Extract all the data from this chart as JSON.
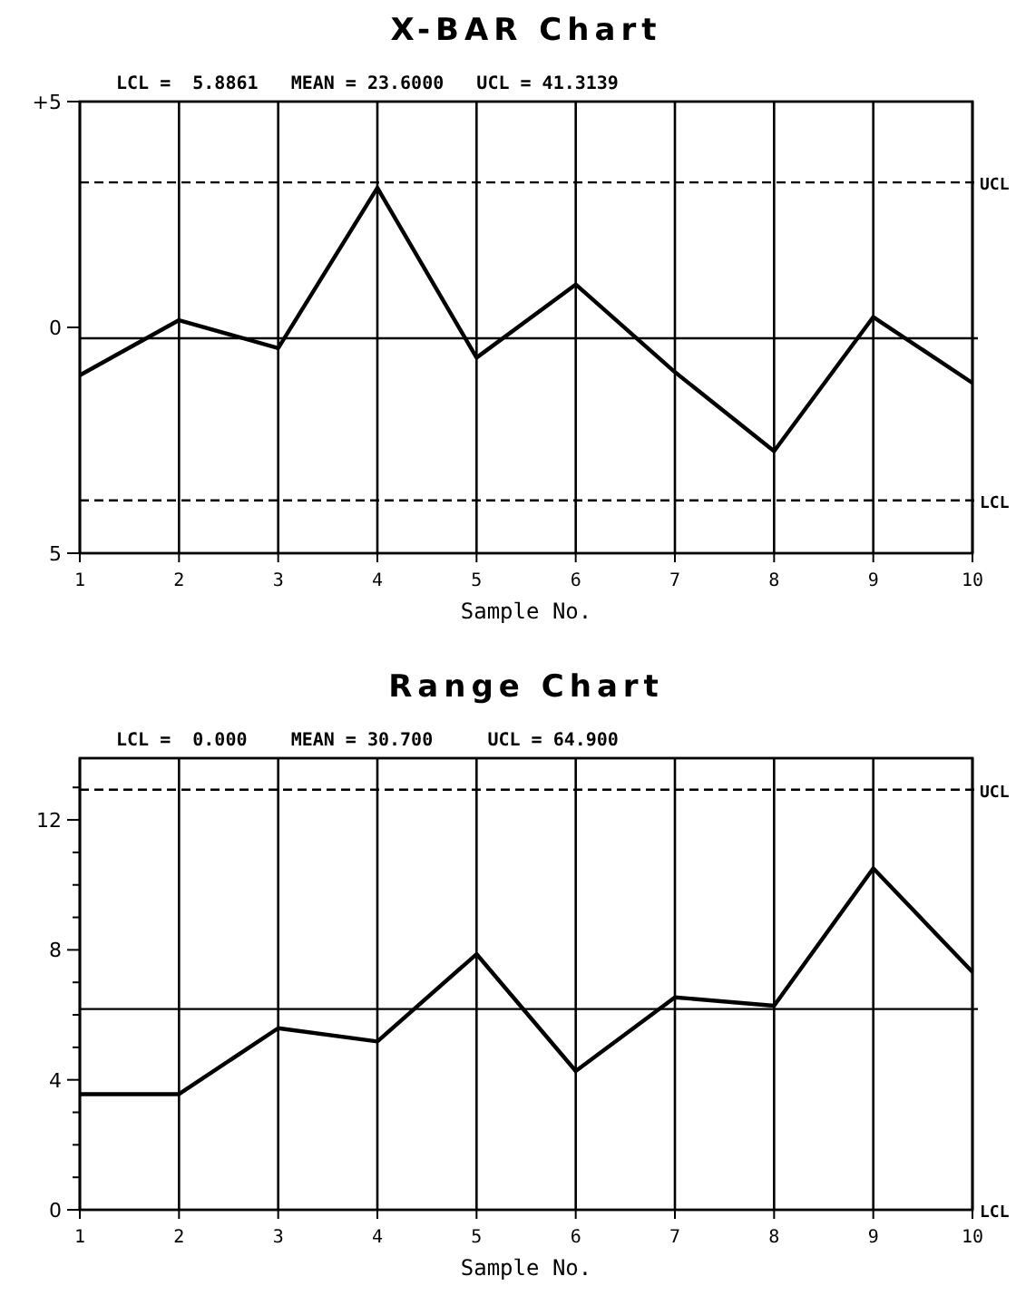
{
  "chart_data": [
    {
      "type": "line",
      "title": "X-BAR Chart",
      "subtitle": "LCL =  5.8861   MEAN = 23.6000   UCL = 41.3139",
      "xlabel": "Sample No.",
      "x": [
        1,
        2,
        3,
        4,
        5,
        6,
        7,
        8,
        9,
        10
      ],
      "series": [
        {
          "color": "#000000",
          "values": [
            -1.06,
            0.16,
            -0.46,
            3.09,
            -0.67,
            0.95,
            -0.99,
            -2.74,
            0.23,
            -1.23
          ]
        }
      ],
      "xlim": [
        1,
        10
      ],
      "xticks": [
        1,
        2,
        3,
        4,
        5,
        6,
        7,
        8,
        9,
        10
      ],
      "ylim": [
        -5,
        5
      ],
      "yticks": [
        {
          "value": -5,
          "label": "5"
        },
        0,
        {
          "value": 5,
          "label": "+5"
        }
      ],
      "ref_lines": [
        {
          "axis": "y",
          "value": 3.21,
          "label": "UCL",
          "line_style": "dashed"
        },
        {
          "axis": "y",
          "value": -0.24,
          "label": null,
          "line_style": "solid"
        },
        {
          "axis": "y",
          "value": -3.83,
          "label": "LCL",
          "line_style": "dashed"
        }
      ],
      "grid": "x",
      "marker": "none",
      "line_style": "solid"
    },
    {
      "type": "line",
      "title": "Range Chart",
      "subtitle": "LCL =  0.000    MEAN = 30.700     UCL = 64.900",
      "xlabel": "Sample No.",
      "x": [
        1,
        2,
        3,
        4,
        5,
        6,
        7,
        8,
        9,
        10
      ],
      "series": [
        {
          "color": "#000000",
          "values": [
            3.56,
            3.56,
            5.59,
            5.18,
            7.87,
            4.27,
            6.54,
            6.28,
            10.51,
            7.32
          ]
        }
      ],
      "xlim": [
        1,
        10
      ],
      "xticks": [
        1,
        2,
        3,
        4,
        5,
        6,
        7,
        8,
        9,
        10
      ],
      "ylim": [
        0,
        13.9
      ],
      "yticks": [
        0,
        {
          "value": 1,
          "label": null
        },
        {
          "value": 2,
          "label": null
        },
        {
          "value": 3,
          "label": null
        },
        4,
        {
          "value": 5,
          "label": null
        },
        {
          "value": 6,
          "label": null
        },
        {
          "value": 7,
          "label": null
        },
        8,
        {
          "value": 9,
          "label": null
        },
        {
          "value": 10,
          "label": null
        },
        {
          "value": 11,
          "label": null
        },
        12,
        {
          "value": 13,
          "label": null
        }
      ],
      "ref_lines": [
        {
          "axis": "y",
          "value": 12.93,
          "label": "UCL",
          "line_style": "dashed"
        },
        {
          "axis": "y",
          "value": 6.18,
          "label": null,
          "line_style": "solid"
        }
      ],
      "annotations": [
        "LCL"
      ],
      "grid": "x",
      "marker": "none",
      "line_style": "solid"
    }
  ]
}
